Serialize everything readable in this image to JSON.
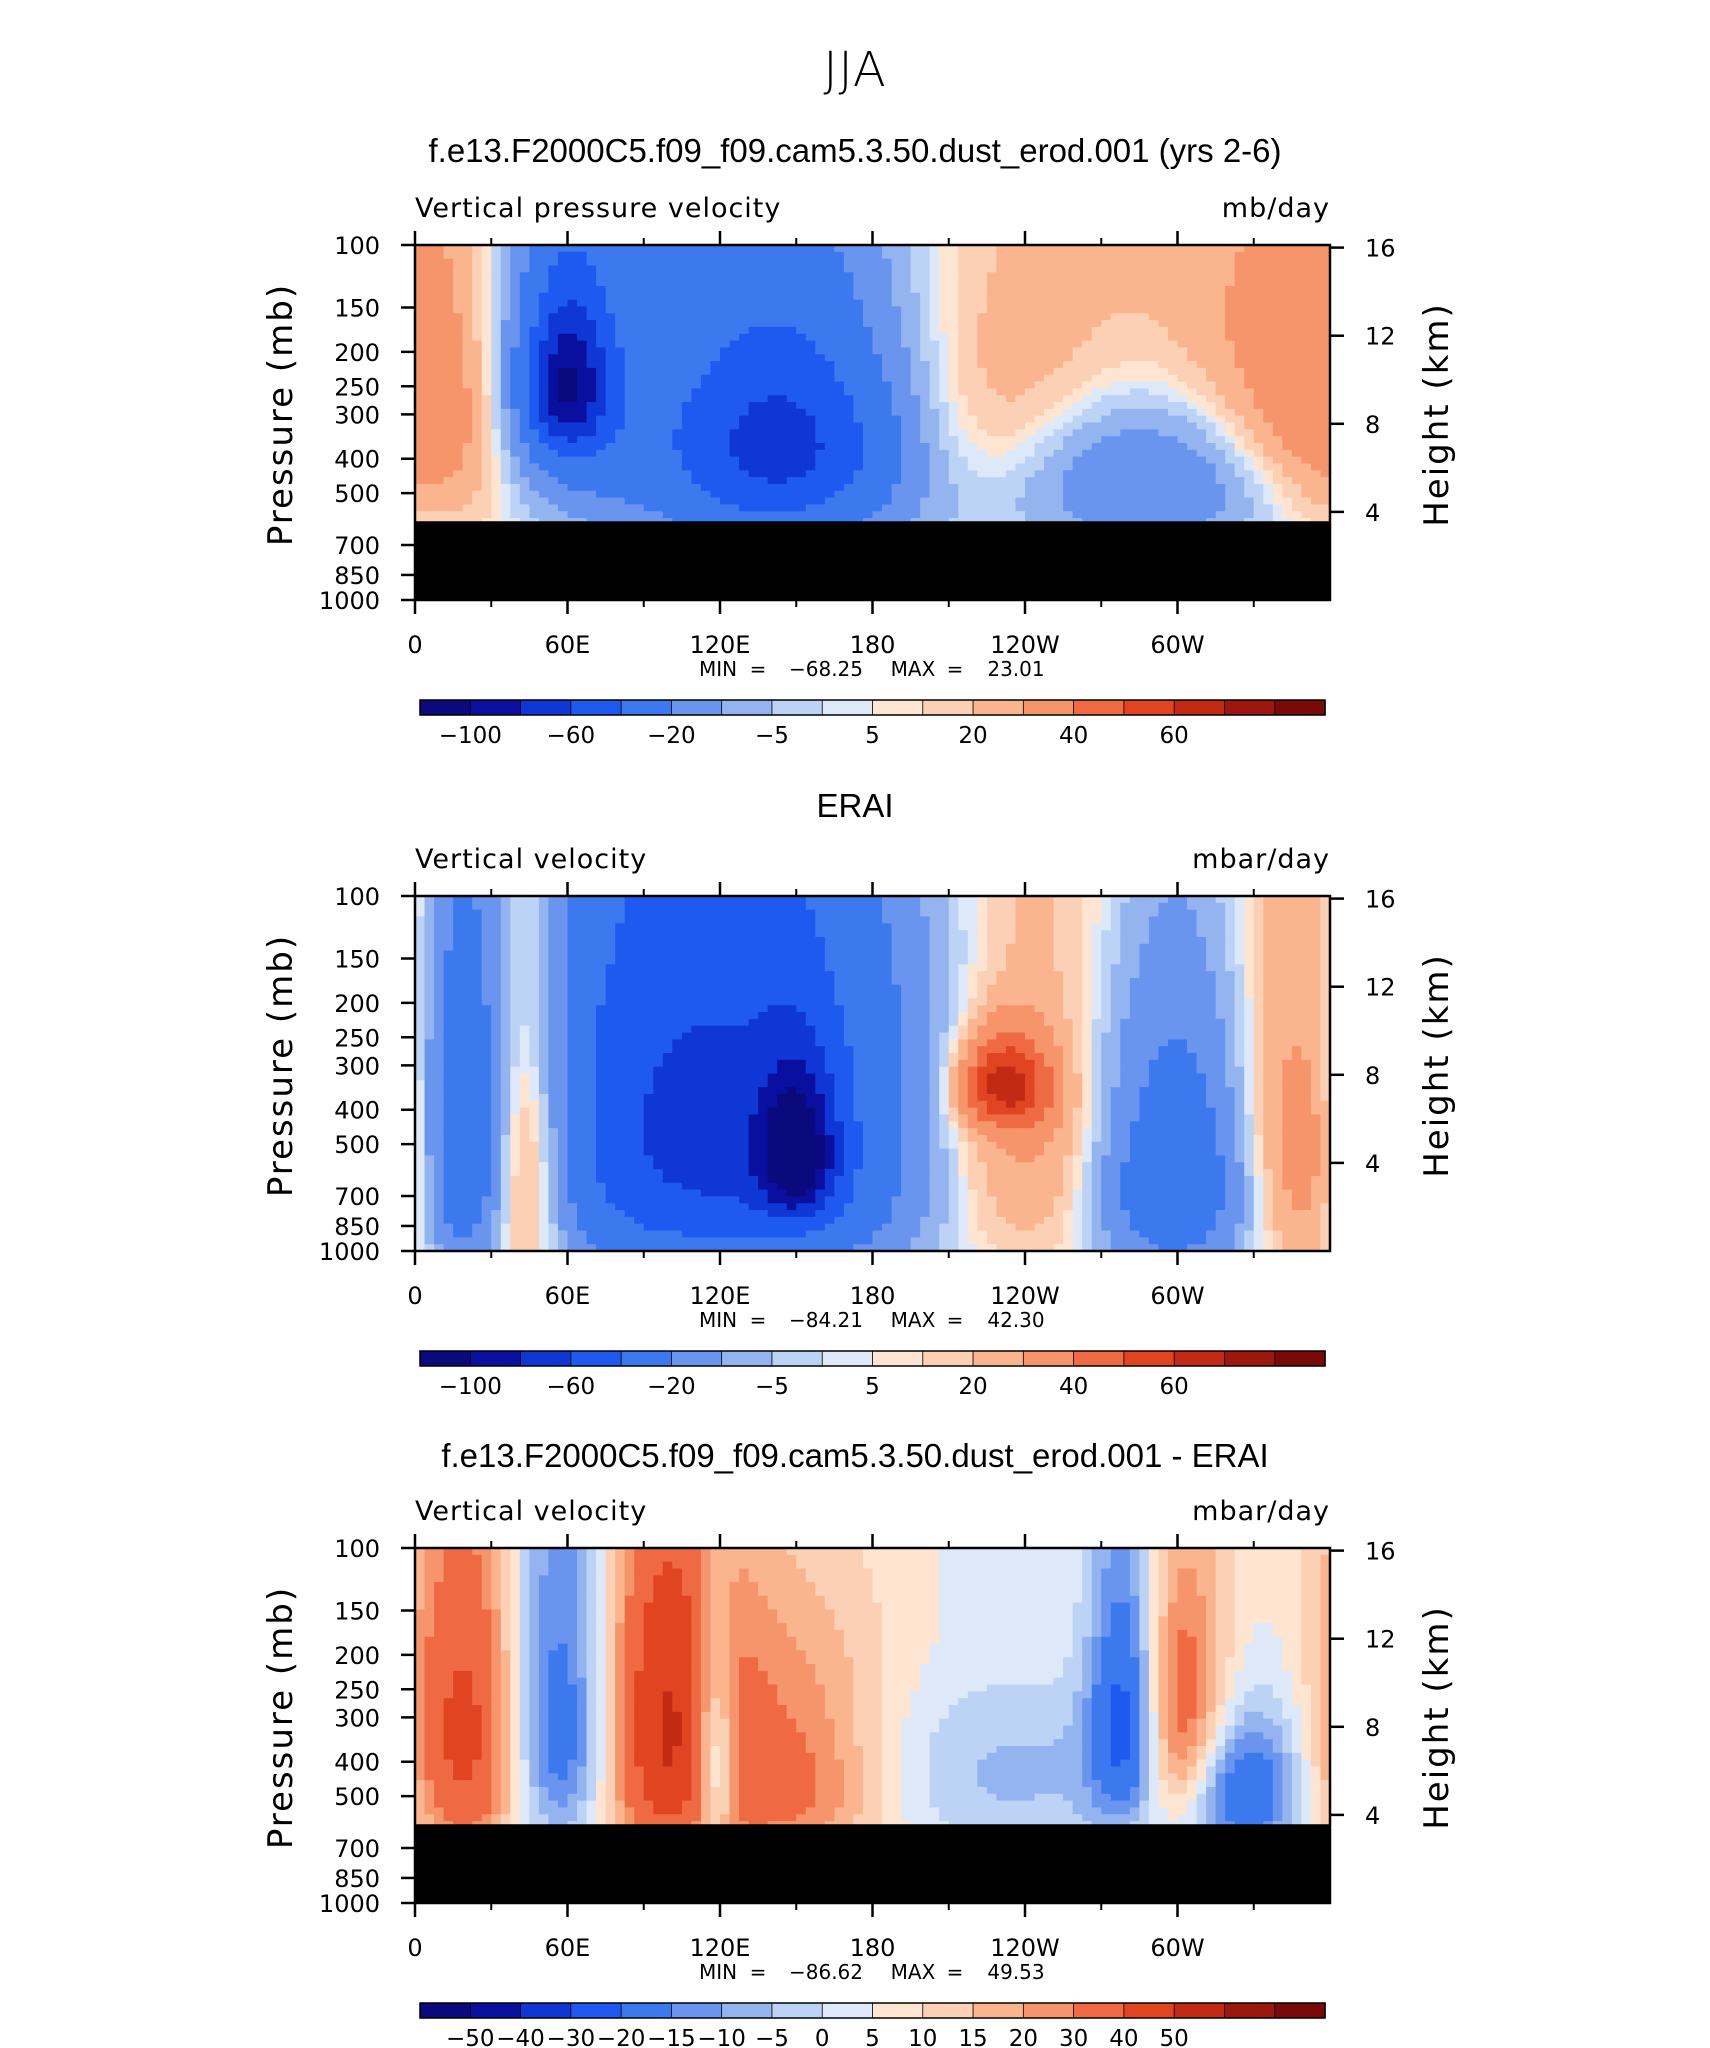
{
  "figure": {
    "suptitle": "JJA"
  },
  "colors": {
    "unified_scale": [
      "#0a0a7d",
      "#0a0f9f",
      "#0f37d6",
      "#1e5aef",
      "#3c78ee",
      "#6a95ef",
      "#94b4f0",
      "#bcd3f5",
      "#dde9f8",
      "#fde5d2",
      "#fcd0b4",
      "#fab58f",
      "#f6946b",
      "#ef6a42",
      "#e04420",
      "#c22a14",
      "#9c180e",
      "#7a0a07"
    ],
    "mask": "#000000"
  },
  "chart_data": [
    {
      "type": "heatmap",
      "title": "f.e13.F2000C5.f09_f09.cam5.3.50.dust_erod.001 (yrs 2-6)",
      "left_label": "Vertical pressure velocity",
      "right_label": "mb/day",
      "ylabel": "Pressure (mb)",
      "y2label": "Height (km)",
      "xticks": [
        "0",
        "60E",
        "120E",
        "180",
        "120W",
        "60W"
      ],
      "yticks": [
        "100",
        "150",
        "200",
        "250",
        "300",
        "400",
        "500",
        "700",
        "850",
        "1000"
      ],
      "y2ticks": [
        "16",
        "12",
        "8",
        "4"
      ],
      "min_label": "MIN",
      "min_value": "−68.25",
      "max_label": "MAX",
      "max_value": "23.01",
      "colorbar_labels": [
        "−100",
        "−60",
        "−20",
        "−5",
        "5",
        "20",
        "40",
        "60"
      ],
      "masked_below_mb": 600,
      "field": [
        {
          "lon": 30,
          "p": 280,
          "rx": 40,
          "ry": 200,
          "v": 12
        },
        {
          "lon": 60,
          "p": 250,
          "rx": 22,
          "ry": 180,
          "v": -40
        },
        {
          "lon": 60,
          "p": 250,
          "rx": 10,
          "ry": 80,
          "v": -68
        },
        {
          "lon": 140,
          "p": 380,
          "rx": 50,
          "ry": 260,
          "v": -28
        },
        {
          "lon": 145,
          "p": 360,
          "rx": 30,
          "ry": 160,
          "v": -45
        },
        {
          "lon": 240,
          "p": 330,
          "rx": 55,
          "ry": 200,
          "v": 18
        },
        {
          "lon": 290,
          "p": 430,
          "rx": 40,
          "ry": 170,
          "v": -35
        },
        {
          "lon": 340,
          "p": 320,
          "rx": 40,
          "ry": 200,
          "v": 16
        },
        {
          "lon": 180,
          "p": 150,
          "rx": 200,
          "ry": 100,
          "v": -3
        },
        {
          "lon": 250,
          "p": 160,
          "rx": 100,
          "ry": 100,
          "v": 4
        }
      ]
    },
    {
      "type": "heatmap",
      "title": "ERAI",
      "left_label": "Vertical velocity",
      "right_label": "mbar/day",
      "ylabel": "Pressure (mb)",
      "y2label": "Height (km)",
      "xticks": [
        "0",
        "60E",
        "120E",
        "180",
        "120W",
        "60W"
      ],
      "yticks": [
        "100",
        "150",
        "200",
        "250",
        "300",
        "400",
        "500",
        "700",
        "850",
        "1000"
      ],
      "y2ticks": [
        "16",
        "12",
        "8",
        "4"
      ],
      "min_label": "MIN",
      "min_value": "−84.21",
      "max_label": "MAX",
      "max_value": "42.30",
      "colorbar_labels": [
        "−100",
        "−60",
        "−20",
        "−5",
        "5",
        "20",
        "40",
        "60"
      ],
      "masked_below_mb": null,
      "field": [
        {
          "lon": 20,
          "p": 520,
          "rx": 12,
          "ry": 380,
          "v": -45
        },
        {
          "lon": 42,
          "p": 520,
          "rx": 15,
          "ry": 400,
          "v": 32
        },
        {
          "lon": 90,
          "p": 460,
          "rx": 40,
          "ry": 420,
          "v": -40
        },
        {
          "lon": 150,
          "p": 500,
          "rx": 45,
          "ry": 420,
          "v": -50
        },
        {
          "lon": 150,
          "p": 530,
          "rx": 10,
          "ry": 160,
          "v": -84
        },
        {
          "lon": 240,
          "p": 460,
          "rx": 60,
          "ry": 400,
          "v": 20
        },
        {
          "lon": 232,
          "p": 340,
          "rx": 12,
          "ry": 70,
          "v": 40
        },
        {
          "lon": 300,
          "p": 600,
          "rx": 25,
          "ry": 350,
          "v": -50
        },
        {
          "lon": 345,
          "p": 520,
          "rx": 25,
          "ry": 400,
          "v": 20
        },
        {
          "lon": 180,
          "p": 200,
          "rx": 200,
          "ry": 120,
          "v": -4
        }
      ]
    },
    {
      "type": "heatmap",
      "title": "f.e13.F2000C5.f09_f09.cam5.3.50.dust_erod.001 - ERAI",
      "left_label": "Vertical velocity",
      "right_label": "mbar/day",
      "ylabel": "Pressure (mb)",
      "y2label": "Height (km)",
      "xticks": [
        "0",
        "60E",
        "120E",
        "180",
        "120W",
        "60W"
      ],
      "yticks": [
        "100",
        "150",
        "200",
        "250",
        "300",
        "400",
        "500",
        "700",
        "850",
        "1000"
      ],
      "y2ticks": [
        "16",
        "12",
        "8",
        "4"
      ],
      "min_label": "MIN",
      "min_value": "−86.62",
      "max_label": "MAX",
      "max_value": "49.53",
      "colorbar_labels": [
        "−50",
        "−40",
        "−30",
        "−20",
        "−15",
        "−10",
        "−5",
        "0",
        "5",
        "10",
        "15",
        "20",
        "30",
        "40",
        "50"
      ],
      "masked_below_mb": 600,
      "field": [
        {
          "lon": 22,
          "p": 350,
          "rx": 18,
          "ry": 260,
          "v": 38
        },
        {
          "lon": 58,
          "p": 300,
          "rx": 18,
          "ry": 260,
          "v": -38
        },
        {
          "lon": 95,
          "p": 340,
          "rx": 22,
          "ry": 280,
          "v": 42
        },
        {
          "lon": 118,
          "p": 400,
          "rx": 6,
          "ry": 180,
          "v": -30
        },
        {
          "lon": 150,
          "p": 450,
          "rx": 30,
          "ry": 220,
          "v": 30
        },
        {
          "lon": 210,
          "p": 420,
          "rx": 80,
          "ry": 220,
          "v": -12
        },
        {
          "lon": 280,
          "p": 300,
          "rx": 10,
          "ry": 180,
          "v": -40
        },
        {
          "lon": 300,
          "p": 320,
          "rx": 15,
          "ry": 180,
          "v": 35
        },
        {
          "lon": 325,
          "p": 480,
          "rx": 15,
          "ry": 150,
          "v": -30
        },
        {
          "lon": 180,
          "p": 180,
          "rx": 120,
          "ry": 90,
          "v": 4
        }
      ]
    }
  ]
}
